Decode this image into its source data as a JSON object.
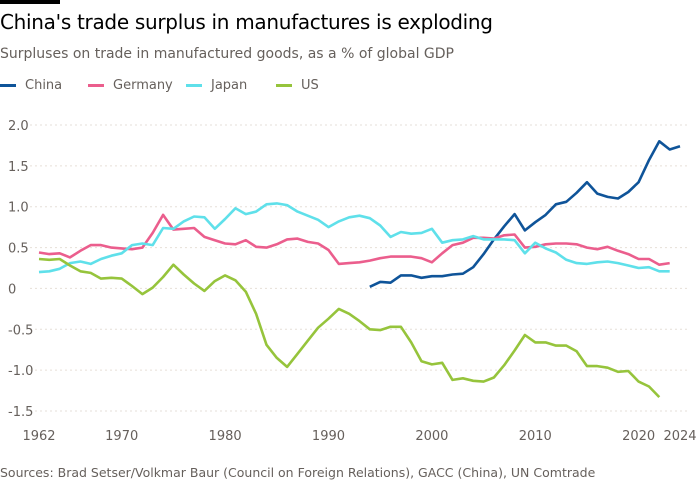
{
  "chart_data": {
    "type": "line",
    "title": "China's trade surplus in manufactures is exploding",
    "subtitle": "Surpluses on trade in manufactured goods, as a % of global GDP",
    "source": "Sources: Brad Setser/Volkmar Baur (Council on Foreign Relations), GACC (China), UN Comtrade",
    "xlim": [
      1962,
      2024
    ],
    "ylim": [
      -1.5,
      2.0
    ],
    "xticks": [
      1962,
      1970,
      1980,
      1990,
      2000,
      2010,
      2020,
      2024
    ],
    "yticks": [
      2.0,
      1.5,
      1.0,
      0.5,
      0,
      -0.5,
      -1.0,
      -1.5
    ],
    "ytick_labels": [
      "2.0",
      "1.5",
      "1.0",
      "0.5",
      "0",
      "-0.5",
      "-1.0",
      "-1.5"
    ],
    "grid": "horizontal dotted",
    "legend_placement": "top",
    "series": [
      {
        "name": "China",
        "color": "#0f5499",
        "start": 1994,
        "values": [
          0.02,
          0.08,
          0.07,
          0.16,
          0.16,
          0.13,
          0.15,
          0.15,
          0.17,
          0.18,
          0.26,
          0.42,
          0.6,
          0.76,
          0.91,
          0.71,
          0.81,
          0.9,
          1.03,
          1.06,
          1.17,
          1.3,
          1.16,
          1.12,
          1.1,
          1.18,
          1.3,
          1.57,
          1.8,
          1.7,
          1.74
        ]
      },
      {
        "name": "Germany",
        "color": "#eb5e8d",
        "start": 1962,
        "values": [
          0.44,
          0.42,
          0.43,
          0.38,
          0.46,
          0.53,
          0.53,
          0.5,
          0.49,
          0.48,
          0.5,
          0.68,
          0.9,
          0.72,
          0.73,
          0.74,
          0.63,
          0.59,
          0.55,
          0.54,
          0.59,
          0.51,
          0.5,
          0.54,
          0.6,
          0.61,
          0.57,
          0.55,
          0.47,
          0.3,
          0.31,
          0.32,
          0.34,
          0.37,
          0.39,
          0.39,
          0.39,
          0.37,
          0.32,
          0.43,
          0.53,
          0.56,
          0.62,
          0.62,
          0.61,
          0.65,
          0.66,
          0.5,
          0.51,
          0.54,
          0.55,
          0.55,
          0.54,
          0.5,
          0.48,
          0.51,
          0.46,
          0.42,
          0.36,
          0.36,
          0.29,
          0.31
        ]
      },
      {
        "name": "Japan",
        "color": "#5fe0ea",
        "start": 1962,
        "values": [
          0.2,
          0.21,
          0.24,
          0.31,
          0.33,
          0.3,
          0.36,
          0.4,
          0.43,
          0.53,
          0.55,
          0.53,
          0.74,
          0.73,
          0.82,
          0.88,
          0.87,
          0.73,
          0.85,
          0.98,
          0.91,
          0.94,
          1.03,
          1.04,
          1.02,
          0.94,
          0.89,
          0.84,
          0.75,
          0.82,
          0.87,
          0.89,
          0.86,
          0.77,
          0.63,
          0.69,
          0.67,
          0.68,
          0.73,
          0.56,
          0.59,
          0.6,
          0.64,
          0.6,
          0.6,
          0.6,
          0.59,
          0.43,
          0.56,
          0.49,
          0.44,
          0.35,
          0.31,
          0.3,
          0.32,
          0.33,
          0.31,
          0.28,
          0.25,
          0.26,
          0.21,
          0.21
        ]
      },
      {
        "name": "US",
        "color": "#96c43c",
        "start": 1962,
        "values": [
          0.36,
          0.35,
          0.36,
          0.28,
          0.21,
          0.19,
          0.12,
          0.13,
          0.12,
          0.03,
          -0.07,
          0.01,
          0.14,
          0.29,
          0.17,
          0.06,
          -0.03,
          0.09,
          0.16,
          0.1,
          -0.04,
          -0.31,
          -0.69,
          -0.85,
          -0.96,
          -0.8,
          -0.64,
          -0.48,
          -0.37,
          -0.25,
          -0.31,
          -0.4,
          -0.5,
          -0.51,
          -0.47,
          -0.47,
          -0.66,
          -0.89,
          -0.93,
          -0.91,
          -1.12,
          -1.1,
          -1.13,
          -1.14,
          -1.09,
          -0.94,
          -0.76,
          -0.57,
          -0.66,
          -0.66,
          -0.7,
          -0.7,
          -0.77,
          -0.95,
          -0.95,
          -0.97,
          -1.02,
          -1.01,
          -1.14,
          -1.2,
          -1.33
        ]
      }
    ]
  }
}
